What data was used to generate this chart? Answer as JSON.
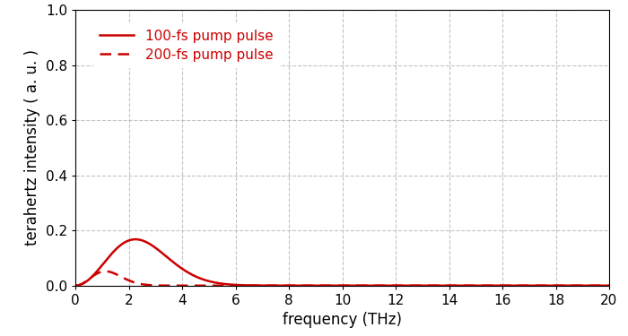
{
  "title": "",
  "xlabel": "frequency (THz)",
  "ylabel": "terahertz intensity ( a. u. )",
  "xlim": [
    0,
    20
  ],
  "ylim": [
    0,
    1
  ],
  "xticks": [
    0,
    2,
    4,
    6,
    8,
    10,
    12,
    14,
    16,
    18,
    20
  ],
  "yticks": [
    0,
    0.2,
    0.4,
    0.6,
    0.8,
    1
  ],
  "line_color": "#cc0000",
  "legend": [
    "100-fs pump pulse",
    "200-fs pump pulse"
  ],
  "curve1_amplitude": 0.168,
  "curve2_amplitude": 0.052,
  "tau1_fs": 100,
  "tau2_fs": 200,
  "grid_color": "#aaaaaa",
  "background_color": "#ffffff",
  "label_fontsize": 12,
  "tick_fontsize": 11,
  "legend_fontsize": 11,
  "font_family": "DejaVu Sans"
}
